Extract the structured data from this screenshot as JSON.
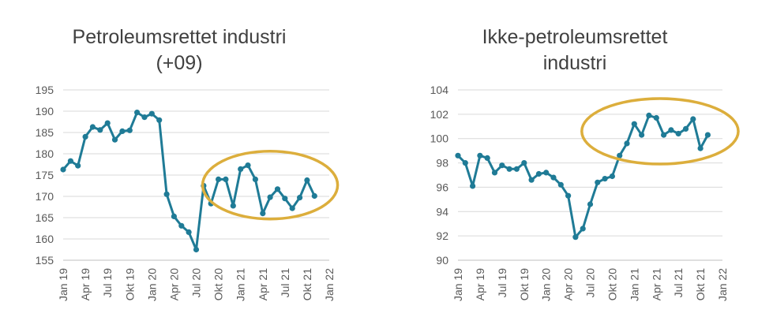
{
  "colors": {
    "series": "#1f7b96",
    "highlight": "#dcae3c"
  },
  "chart_data": [
    {
      "type": "line",
      "title_lines": [
        "Petroleumsrettet industri",
        "(+09)"
      ],
      "ylim": [
        155,
        195
      ],
      "yticks": [
        "195",
        "190",
        "185",
        "180",
        "175",
        "170",
        "165",
        "160",
        "155"
      ],
      "x_ticks": [
        "Jan 19",
        "Apr 19",
        "Jul 19",
        "Okt 19",
        "Jan 20",
        "Apr 20",
        "Jul 20",
        "Okt 20",
        "Jan 21",
        "Apr 21",
        "Jul 21",
        "Okt 21",
        "Jan 22"
      ],
      "x_start": "2019-01",
      "x_end": "2022-01",
      "series": [
        {
          "values": [
            176.3,
            178.3,
            177.2,
            184.0,
            186.3,
            185.6,
            187.2,
            183.3,
            185.3,
            185.5,
            189.7,
            188.6,
            189.4,
            187.9,
            170.5,
            165.3,
            163.1,
            161.6,
            157.5,
            172.5,
            168.3,
            174.0,
            174.0,
            167.8,
            176.4,
            177.3,
            174.0,
            166.0,
            169.8,
            171.7,
            169.5,
            167.2,
            169.7,
            173.8,
            170.1
          ]
        }
      ],
      "highlight": {
        "x_from": "2020-10",
        "x_to": "2021-12",
        "y_from": 165.8,
        "y_to": 179.5
      }
    },
    {
      "type": "line",
      "title_lines": [
        "Ikke-petroleumsrettet",
        "industri"
      ],
      "ylim": [
        90,
        104
      ],
      "yticks": [
        "104",
        "102",
        "100",
        "98",
        "96",
        "94",
        "92",
        "90"
      ],
      "x_ticks": [
        "Jan 19",
        "Apr 19",
        "Jul 19",
        "Okt 19",
        "Jan 20",
        "Apr 20",
        "Jul 20",
        "Okt 20",
        "Jan 21",
        "Apr 21",
        "Jul 21",
        "Okt 21",
        "Jan 22"
      ],
      "x_start": "2019-01",
      "x_end": "2022-01",
      "series": [
        {
          "values": [
            98.6,
            98.0,
            96.1,
            98.6,
            98.4,
            97.2,
            97.8,
            97.5,
            97.5,
            98.0,
            96.6,
            97.1,
            97.2,
            96.8,
            96.2,
            95.3,
            91.9,
            92.6,
            94.6,
            96.4,
            96.7,
            96.9,
            98.6,
            99.6,
            101.2,
            100.3,
            101.9,
            101.7,
            100.3,
            100.7,
            100.4,
            100.8,
            101.6,
            99.2,
            100.3
          ]
        }
      ],
      "highlight": {
        "x_from": "2020-08",
        "x_to": "2022-01",
        "y_from": 98.3,
        "y_to": 102.9
      }
    }
  ]
}
